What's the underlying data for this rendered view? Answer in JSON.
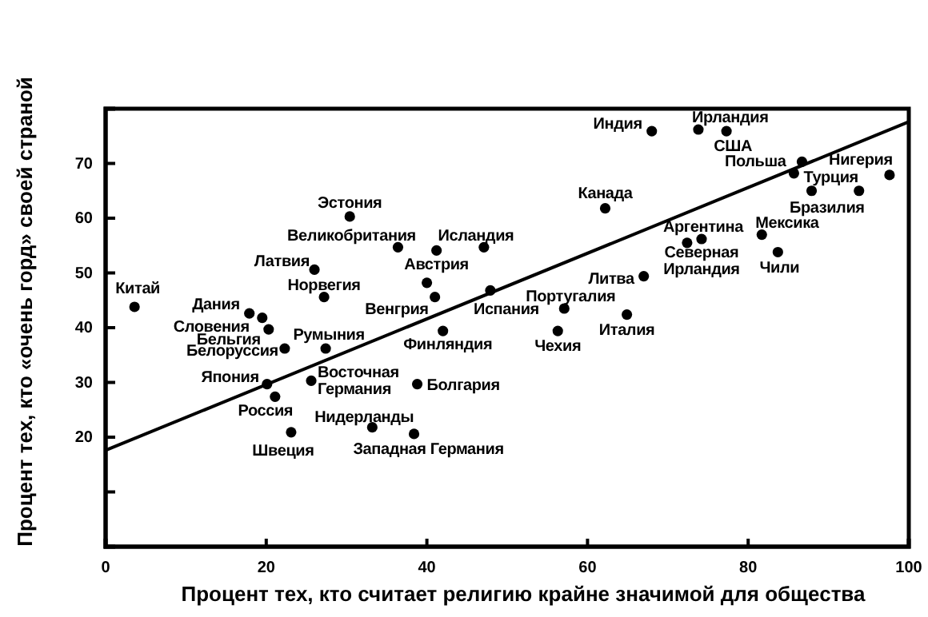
{
  "chart_data": {
    "type": "scatter",
    "xlabel": "Процент тех, кто считает религию крайне значимой для общества",
    "ylabel": "Процент тех, кто «очень горд» своей страной",
    "xlim": [
      0,
      100
    ],
    "xticks": [
      0,
      20,
      40,
      60,
      80,
      100
    ],
    "ylim": [
      0,
      80
    ],
    "yticks": [
      {
        "value": 10,
        "label": null
      },
      20,
      30,
      40,
      50,
      60,
      70
    ],
    "grid": false,
    "series": [
      {
        "marker": "circle",
        "color": "#000000",
        "x": [
          3.6,
          17.9,
          19.5,
          20.3,
          22.3,
          27.4,
          27.2,
          26.0,
          30.4,
          36.4,
          41.2,
          47.1,
          41.0,
          47.9,
          42.0,
          20.1,
          21.1,
          23.1,
          25.6,
          38.8,
          33.2,
          38.4,
          68.0,
          73.8,
          77.3,
          86.7,
          85.7,
          97.6,
          93.8,
          62.2,
          81.7,
          83.7,
          74.2,
          72.4,
          67.0,
          57.1,
          64.9,
          56.3,
          40.0,
          87.9
        ],
        "values": [
          43.8,
          42.6,
          41.8,
          39.7,
          36.2,
          36.2,
          45.6,
          50.6,
          60.3,
          54.7,
          54.1,
          54.7,
          45.6,
          46.8,
          39.4,
          29.7,
          27.4,
          20.9,
          30.3,
          29.7,
          21.8,
          20.6,
          75.9,
          76.2,
          75.9,
          70.3,
          68.2,
          67.9,
          65.0,
          61.8,
          57.0,
          53.8,
          56.2,
          55.5,
          49.4,
          43.5,
          42.4,
          39.4,
          48.2,
          65.0
        ]
      },
      {
        "type": "line",
        "color": "#000000",
        "x": [
          0,
          100
        ],
        "values": [
          17.6,
          77.6
        ]
      }
    ],
    "annotations": [
      {
        "text": "Китай",
        "x": 3.6,
        "y": 43.8
      },
      {
        "text": "Дания",
        "x": 17.9,
        "y": 42.6
      },
      {
        "text": "Словения",
        "x": 19.5,
        "y": 41.8
      },
      {
        "text": "Бельгия",
        "x": 20.3,
        "y": 39.7
      },
      {
        "text": "Белоруссия",
        "x": 22.3,
        "y": 36.2
      },
      {
        "text": "Румыния",
        "x": 27.4,
        "y": 36.2
      },
      {
        "text": "Норвегия",
        "x": 27.2,
        "y": 45.6
      },
      {
        "text": "Латвия",
        "x": 26.0,
        "y": 50.6
      },
      {
        "text": "Эстония",
        "x": 30.4,
        "y": 60.3
      },
      {
        "text": "Великобритания",
        "x": 36.4,
        "y": 54.7
      },
      {
        "text": "Австрия",
        "x": 41.2,
        "y": 54.1
      },
      {
        "text": "Исландия",
        "x": 47.1,
        "y": 54.7
      },
      {
        "text": "Венгрия",
        "x": 41.0,
        "y": 45.6
      },
      {
        "text": "Испания",
        "x": 47.9,
        "y": 46.8
      },
      {
        "text": "Финляндия",
        "x": 42.0,
        "y": 39.4
      },
      {
        "text": "Япония",
        "x": 20.1,
        "y": 29.7
      },
      {
        "text": "Россия",
        "x": 21.1,
        "y": 27.4
      },
      {
        "text": "Швеция",
        "x": 23.1,
        "y": 20.9
      },
      {
        "text": "Восточная Германия",
        "x": 25.6,
        "y": 30.3
      },
      {
        "text": "Болгария",
        "x": 38.8,
        "y": 29.7
      },
      {
        "text": "Нидерланды",
        "x": 33.2,
        "y": 21.8
      },
      {
        "text": "Западная Германия",
        "x": 38.4,
        "y": 20.6
      },
      {
        "text": "Индия",
        "x": 68.0,
        "y": 75.9
      },
      {
        "text": "Ирландия",
        "x": 73.8,
        "y": 76.2
      },
      {
        "text": "США",
        "x": 77.3,
        "y": 75.9
      },
      {
        "text": "Польша",
        "x": 86.7,
        "y": 70.3
      },
      {
        "text": "Турция",
        "x": 85.7,
        "y": 68.2
      },
      {
        "text": "Нигерия",
        "x": 97.6,
        "y": 67.9
      },
      {
        "text": "Бразилия",
        "x": 93.8,
        "y": 65.0
      },
      {
        "text": "Канада",
        "x": 62.2,
        "y": 61.8
      },
      {
        "text": "Мексика",
        "x": 81.7,
        "y": 57.0
      },
      {
        "text": "Чили",
        "x": 83.7,
        "y": 53.8
      },
      {
        "text": "Аргентина",
        "x": 74.2,
        "y": 56.2
      },
      {
        "text": "Северная Ирландия",
        "x": 72.4,
        "y": 55.5
      },
      {
        "text": "Литва",
        "x": 67.0,
        "y": 49.4
      },
      {
        "text": "Португалия",
        "x": 57.1,
        "y": 43.5
      },
      {
        "text": "Италия",
        "x": 64.9,
        "y": 42.4
      },
      {
        "text": "Чехия",
        "x": 56.3,
        "y": 39.4
      }
    ]
  }
}
